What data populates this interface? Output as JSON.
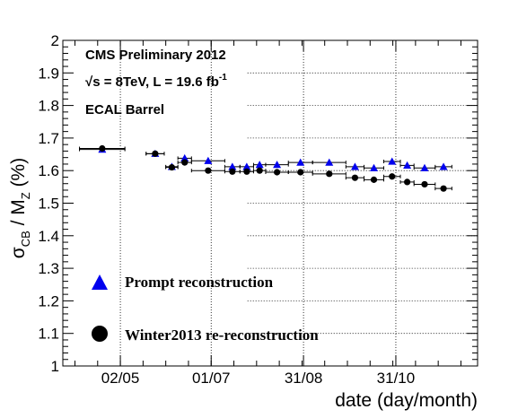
{
  "chart_data": {
    "type": "scatter",
    "title": "",
    "annotations": {
      "line1": "CMS Preliminary 2012",
      "line2_prefix": "√s = 8TeV, L = 19.6 fb",
      "line2_sup": "-1",
      "line3": "ECAL Barrel"
    },
    "ylabel": {
      "main": "σ",
      "sub1": "CB",
      "mid": " / M",
      "sub2": "Z",
      "tail": " (%)"
    },
    "xlabel": "date (day/month)",
    "ylim": [
      1,
      2
    ],
    "y_ticks": [
      1,
      1.1,
      1.2,
      1.3,
      1.4,
      1.5,
      1.6,
      1.7,
      1.8,
      1.9,
      2
    ],
    "y_tick_labels": [
      "1",
      "1.1",
      "1.2",
      "1.3",
      "1.4",
      "1.5",
      "1.6",
      "1.7",
      "1.8",
      "1.9",
      "2"
    ],
    "x_axis": {
      "type": "date",
      "range": [
        "2012-03-25",
        "2012-12-24"
      ],
      "ticks": [
        "2012-05-02",
        "2012-07-01",
        "2012-08-31",
        "2012-10-31"
      ],
      "tick_labels": [
        "02/05",
        "01/07",
        "31/08",
        "31/10"
      ]
    },
    "grid": {
      "vertical_dotted_at_ticks": true,
      "horizontal_dotted_at_ticks": true
    },
    "legend_placement": "bottom-left",
    "series": [
      {
        "name": "Prompt reconstruction",
        "marker": "triangle",
        "color": "#0000ee",
        "points": [
          {
            "x_start": "2012-04-05",
            "x_end": "2012-05-05",
            "y": 1.665,
            "y_err": 0.006
          },
          {
            "x_start": "2012-05-19",
            "x_end": "2012-05-31",
            "y": 1.652,
            "y_err": 0.006
          },
          {
            "x_start": "2012-06-01",
            "x_end": "2012-06-09",
            "y": 1.612,
            "y_err": 0.006
          },
          {
            "x_start": "2012-06-09",
            "x_end": "2012-06-18",
            "y": 1.638,
            "y_err": 0.006
          },
          {
            "x_start": "2012-06-18",
            "x_end": "2012-07-10",
            "y": 1.63,
            "y_err": 0.006
          },
          {
            "x_start": "2012-07-10",
            "x_end": "2012-07-20",
            "y": 1.612,
            "y_err": 0.006
          },
          {
            "x_start": "2012-07-20",
            "x_end": "2012-07-29",
            "y": 1.612,
            "y_err": 0.006
          },
          {
            "x_start": "2012-07-29",
            "x_end": "2012-08-06",
            "y": 1.618,
            "y_err": 0.006
          },
          {
            "x_start": "2012-08-06",
            "x_end": "2012-08-21",
            "y": 1.618,
            "y_err": 0.006
          },
          {
            "x_start": "2012-08-21",
            "x_end": "2012-09-06",
            "y": 1.625,
            "y_err": 0.006
          },
          {
            "x_start": "2012-09-06",
            "x_end": "2012-09-28",
            "y": 1.625,
            "y_err": 0.006
          },
          {
            "x_start": "2012-09-28",
            "x_end": "2012-10-10",
            "y": 1.612,
            "y_err": 0.006
          },
          {
            "x_start": "2012-10-10",
            "x_end": "2012-10-23",
            "y": 1.608,
            "y_err": 0.006
          },
          {
            "x_start": "2012-10-23",
            "x_end": "2012-11-03",
            "y": 1.628,
            "y_err": 0.006
          },
          {
            "x_start": "2012-11-03",
            "x_end": "2012-11-12",
            "y": 1.616,
            "y_err": 0.006
          },
          {
            "x_start": "2012-11-12",
            "x_end": "2012-11-26",
            "y": 1.608,
            "y_err": 0.006
          },
          {
            "x_start": "2012-11-26",
            "x_end": "2012-12-07",
            "y": 1.612,
            "y_err": 0.006
          }
        ]
      },
      {
        "name": "Winter2013 re-reconstruction",
        "marker": "circle",
        "color": "#000000",
        "points": [
          {
            "x_start": "2012-04-05",
            "x_end": "2012-05-05",
            "y": 1.668,
            "y_err": 0.005
          },
          {
            "x_start": "2012-05-19",
            "x_end": "2012-05-31",
            "y": 1.652,
            "y_err": 0.005
          },
          {
            "x_start": "2012-06-01",
            "x_end": "2012-06-09",
            "y": 1.61,
            "y_err": 0.005
          },
          {
            "x_start": "2012-06-09",
            "x_end": "2012-06-18",
            "y": 1.625,
            "y_err": 0.005
          },
          {
            "x_start": "2012-06-18",
            "x_end": "2012-07-10",
            "y": 1.6,
            "y_err": 0.005
          },
          {
            "x_start": "2012-07-10",
            "x_end": "2012-07-20",
            "y": 1.597,
            "y_err": 0.005
          },
          {
            "x_start": "2012-07-20",
            "x_end": "2012-07-29",
            "y": 1.597,
            "y_err": 0.005
          },
          {
            "x_start": "2012-07-29",
            "x_end": "2012-08-06",
            "y": 1.6,
            "y_err": 0.005
          },
          {
            "x_start": "2012-08-06",
            "x_end": "2012-08-21",
            "y": 1.595,
            "y_err": 0.005
          },
          {
            "x_start": "2012-08-21",
            "x_end": "2012-09-06",
            "y": 1.595,
            "y_err": 0.005
          },
          {
            "x_start": "2012-09-06",
            "x_end": "2012-09-28",
            "y": 1.59,
            "y_err": 0.005
          },
          {
            "x_start": "2012-09-28",
            "x_end": "2012-10-10",
            "y": 1.578,
            "y_err": 0.005
          },
          {
            "x_start": "2012-10-10",
            "x_end": "2012-10-23",
            "y": 1.572,
            "y_err": 0.005
          },
          {
            "x_start": "2012-10-23",
            "x_end": "2012-11-03",
            "y": 1.582,
            "y_err": 0.005
          },
          {
            "x_start": "2012-11-03",
            "x_end": "2012-11-12",
            "y": 1.565,
            "y_err": 0.005
          },
          {
            "x_start": "2012-11-12",
            "x_end": "2012-11-26",
            "y": 1.558,
            "y_err": 0.005
          },
          {
            "x_start": "2012-11-26",
            "x_end": "2012-12-07",
            "y": 1.545,
            "y_err": 0.005
          }
        ]
      }
    ]
  }
}
